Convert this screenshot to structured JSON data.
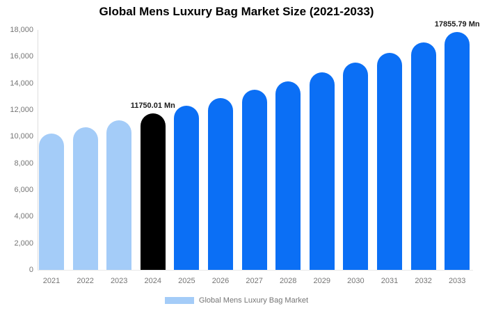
{
  "title": "Global Mens Luxury Bag Market Size (2021-2033)",
  "legend": {
    "label": "Global Mens Luxury Bag Market",
    "swatch_color": "#a4ccf8"
  },
  "colors": {
    "past_bar": "#a4ccf8",
    "current_bar": "#000000",
    "forecast_bar": "#0b6ff5",
    "axis_line": "#dddddd",
    "baseline": "#e9e9e9",
    "tick_text": "#757575",
    "data_label_text": "#1a1a1a"
  },
  "chart_data": {
    "type": "bar",
    "title": "Global Mens Luxury Bag Market Size (2021-2033)",
    "unit": "Mn",
    "categories": [
      "2021",
      "2022",
      "2023",
      "2024",
      "2025",
      "2026",
      "2027",
      "2028",
      "2029",
      "2030",
      "2031",
      "2032",
      "2033"
    ],
    "values": [
      10220.65,
      10706.77,
      11216.01,
      11750.01,
      12308.78,
      12894.13,
      13507.32,
      14149.67,
      14822.57,
      15527.48,
      16265.92,
      17039.48,
      17855.79
    ],
    "bar_colors": [
      "#a4ccf8",
      "#a4ccf8",
      "#a4ccf8",
      "#000000",
      "#0b6ff5",
      "#0b6ff5",
      "#0b6ff5",
      "#0b6ff5",
      "#0b6ff5",
      "#0b6ff5",
      "#0b6ff5",
      "#0b6ff5",
      "#0b6ff5"
    ],
    "data_labels": [
      {
        "index": 3,
        "text": "11750.01 Mn"
      },
      {
        "index": 12,
        "text": "17855.79 Mn"
      }
    ],
    "ylim": [
      0,
      18000
    ],
    "y_tick_step": 2000,
    "y_tick_labels": [
      "0",
      "2,000",
      "4,000",
      "6,000",
      "8,000",
      "10,000",
      "12,000",
      "14,000",
      "16,000",
      "18,000"
    ],
    "grid": false,
    "legend_entries": [
      "Global Mens Luxury Bag Market"
    ],
    "legend_position": "bottom"
  }
}
